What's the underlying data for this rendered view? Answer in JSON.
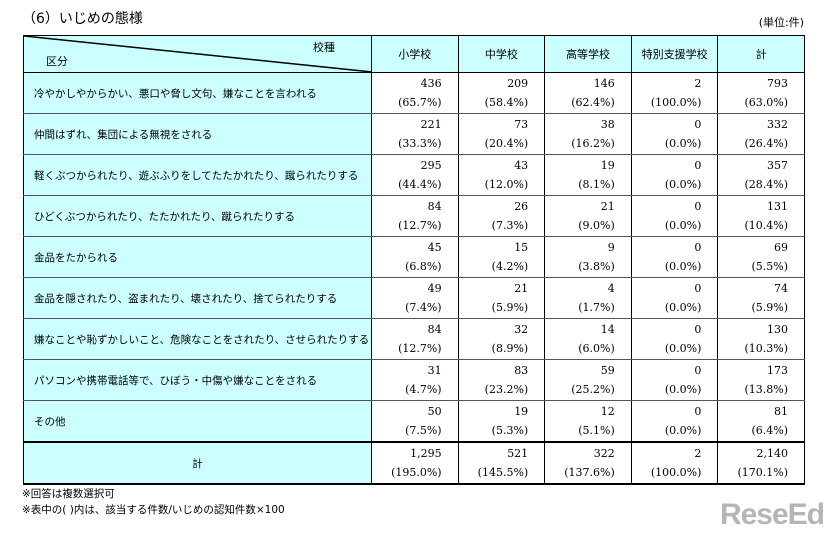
{
  "title": "（6）いじめの態様",
  "unit": "(単位:件)",
  "header": {
    "corner_top": "校種",
    "corner_bottom": "区分",
    "columns": [
      "小学校",
      "中学校",
      "高等学校",
      "特別支援学校",
      "計"
    ]
  },
  "rows": [
    {
      "label": "冷やかしやからかい、悪口や脅し文句、嫌なことを言われる",
      "counts": [
        "436",
        "209",
        "146",
        "2",
        "793"
      ],
      "pcts": [
        "(65.7%)",
        "(58.4%)",
        "(62.4%)",
        "(100.0%)",
        "(63.0%)"
      ]
    },
    {
      "label": "仲間はずれ、集団による無視をされる",
      "counts": [
        "221",
        "73",
        "38",
        "0",
        "332"
      ],
      "pcts": [
        "(33.3%)",
        "(20.4%)",
        "(16.2%)",
        "(0.0%)",
        "(26.4%)"
      ]
    },
    {
      "label": "軽くぶつかられたり、遊ぶふりをしてたたかれたり、蹴られたりする",
      "counts": [
        "295",
        "43",
        "19",
        "0",
        "357"
      ],
      "pcts": [
        "(44.4%)",
        "(12.0%)",
        "(8.1%)",
        "(0.0%)",
        "(28.4%)"
      ]
    },
    {
      "label": "ひどくぶつかられたり、たたかれたり、蹴られたりする",
      "counts": [
        "84",
        "26",
        "21",
        "0",
        "131"
      ],
      "pcts": [
        "(12.7%)",
        "(7.3%)",
        "(9.0%)",
        "(0.0%)",
        "(10.4%)"
      ]
    },
    {
      "label": "金品をたかられる",
      "counts": [
        "45",
        "15",
        "9",
        "0",
        "69"
      ],
      "pcts": [
        "(6.8%)",
        "(4.2%)",
        "(3.8%)",
        "(0.0%)",
        "(5.5%)"
      ]
    },
    {
      "label": "金品を隠されたり、盗まれたり、壊されたり、捨てられたりする",
      "counts": [
        "49",
        "21",
        "4",
        "0",
        "74"
      ],
      "pcts": [
        "(7.4%)",
        "(5.9%)",
        "(1.7%)",
        "(0.0%)",
        "(5.9%)"
      ]
    },
    {
      "label": "嫌なことや恥ずかしいこと、危険なことをされたり、させられたりする",
      "counts": [
        "84",
        "32",
        "14",
        "0",
        "130"
      ],
      "pcts": [
        "(12.7%)",
        "(8.9%)",
        "(6.0%)",
        "(0.0%)",
        "(10.3%)"
      ]
    },
    {
      "label": "パソコンや携帯電話等で、ひぼう・中傷や嫌なことをされる",
      "counts": [
        "31",
        "83",
        "59",
        "0",
        "173"
      ],
      "pcts": [
        "(4.7%)",
        "(23.2%)",
        "(25.2%)",
        "(0.0%)",
        "(13.8%)"
      ]
    },
    {
      "label": "その他",
      "counts": [
        "50",
        "19",
        "12",
        "0",
        "81"
      ],
      "pcts": [
        "(7.5%)",
        "(5.3%)",
        "(5.1%)",
        "(0.0%)",
        "(6.4%)"
      ]
    }
  ],
  "total": {
    "label": "計",
    "counts": [
      "1,295",
      "521",
      "322",
      "2",
      "2,140"
    ],
    "pcts": [
      "(195.0%)",
      "(145.5%)",
      "(137.6%)",
      "(100.0%)",
      "(170.1%)"
    ]
  },
  "notes": [
    "※回答は複数選択可",
    "※表中の( )内は、該当する件数/いじめの認知件数×100"
  ],
  "watermark": "ReseEd"
}
